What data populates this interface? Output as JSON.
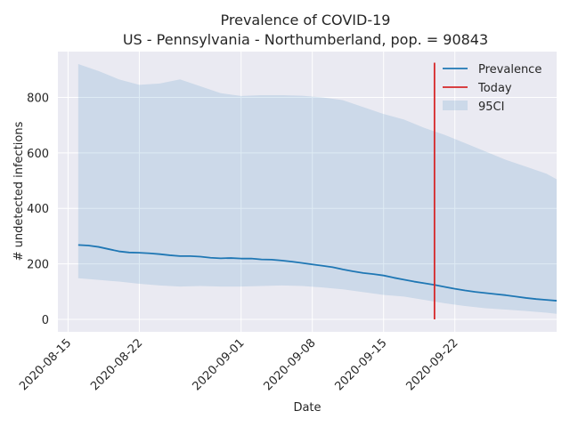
{
  "chart_data": {
    "type": "line",
    "title": "Prevalence of COVID-19",
    "subtitle": "US - Pennsylvania - Northumberland, pop. = 90843",
    "xlabel": "Date",
    "ylabel": "# undetected infections",
    "x_ticks": [
      "2020-08-15",
      "2020-08-22",
      "2020-09-01",
      "2020-09-08",
      "2020-09-15",
      "2020-09-22"
    ],
    "y_ticks": [
      0,
      200,
      400,
      600,
      800
    ],
    "xlim": [
      "2020-08-14",
      "2020-10-02"
    ],
    "ylim": [
      -45,
      965
    ],
    "grid": true,
    "legend_position": "top-right",
    "series": [
      {
        "name": "Prevalence",
        "color": "#1f77b4",
        "points": [
          [
            "2020-08-16",
            268
          ],
          [
            "2020-08-17",
            266
          ],
          [
            "2020-08-18",
            261
          ],
          [
            "2020-08-19",
            253
          ],
          [
            "2020-08-20",
            245
          ],
          [
            "2020-08-21",
            241
          ],
          [
            "2020-08-22",
            240
          ],
          [
            "2020-08-23",
            238
          ],
          [
            "2020-08-24",
            235
          ],
          [
            "2020-08-25",
            231
          ],
          [
            "2020-08-26",
            228
          ],
          [
            "2020-08-27",
            228
          ],
          [
            "2020-08-28",
            226
          ],
          [
            "2020-08-29",
            222
          ],
          [
            "2020-08-30",
            220
          ],
          [
            "2020-08-31",
            221
          ],
          [
            "2020-09-01",
            219
          ],
          [
            "2020-09-02",
            219
          ],
          [
            "2020-09-03",
            216
          ],
          [
            "2020-09-04",
            215
          ],
          [
            "2020-09-05",
            212
          ],
          [
            "2020-09-06",
            208
          ],
          [
            "2020-09-07",
            203
          ],
          [
            "2020-09-08",
            198
          ],
          [
            "2020-09-09",
            193
          ],
          [
            "2020-09-10",
            188
          ],
          [
            "2020-09-11",
            180
          ],
          [
            "2020-09-12",
            173
          ],
          [
            "2020-09-13",
            167
          ],
          [
            "2020-09-14",
            163
          ],
          [
            "2020-09-15",
            158
          ],
          [
            "2020-09-16",
            150
          ],
          [
            "2020-09-17",
            143
          ],
          [
            "2020-09-18",
            136
          ],
          [
            "2020-09-19",
            130
          ],
          [
            "2020-09-20",
            124
          ],
          [
            "2020-09-21",
            117
          ],
          [
            "2020-09-22",
            110
          ],
          [
            "2020-09-23",
            104
          ],
          [
            "2020-09-24",
            99
          ],
          [
            "2020-09-25",
            95
          ],
          [
            "2020-09-26",
            91
          ],
          [
            "2020-09-27",
            87
          ],
          [
            "2020-09-28",
            82
          ],
          [
            "2020-09-29",
            77
          ],
          [
            "2020-09-30",
            73
          ],
          [
            "2020-10-01",
            70
          ],
          [
            "2020-10-02",
            67
          ]
        ]
      },
      {
        "name": "Today",
        "color": "#d62728",
        "points": [
          [
            "2020-09-20",
            0
          ],
          [
            "2020-09-20",
            925
          ]
        ]
      }
    ],
    "band": {
      "name": "95CI",
      "color": "#1f77b4",
      "opacity": 0.15,
      "points": [
        [
          "2020-08-16",
          148,
          920
        ],
        [
          "2020-08-18",
          142,
          895
        ],
        [
          "2020-08-20",
          136,
          865
        ],
        [
          "2020-08-22",
          128,
          845
        ],
        [
          "2020-08-24",
          122,
          850
        ],
        [
          "2020-08-26",
          118,
          865
        ],
        [
          "2020-08-28",
          120,
          840
        ],
        [
          "2020-08-30",
          118,
          815
        ],
        [
          "2020-09-01",
          118,
          805
        ],
        [
          "2020-09-03",
          120,
          808
        ],
        [
          "2020-09-05",
          122,
          808
        ],
        [
          "2020-09-07",
          120,
          806
        ],
        [
          "2020-09-09",
          115,
          800
        ],
        [
          "2020-09-11",
          108,
          790
        ],
        [
          "2020-09-13",
          98,
          765
        ],
        [
          "2020-09-15",
          88,
          740
        ],
        [
          "2020-09-17",
          82,
          720
        ],
        [
          "2020-09-19",
          70,
          690
        ],
        [
          "2020-09-21",
          58,
          665
        ],
        [
          "2020-09-23",
          48,
          635
        ],
        [
          "2020-09-25",
          40,
          605
        ],
        [
          "2020-09-27",
          35,
          575
        ],
        [
          "2020-09-29",
          30,
          550
        ],
        [
          "2020-10-01",
          24,
          525
        ],
        [
          "2020-10-02",
          20,
          505
        ]
      ]
    }
  }
}
